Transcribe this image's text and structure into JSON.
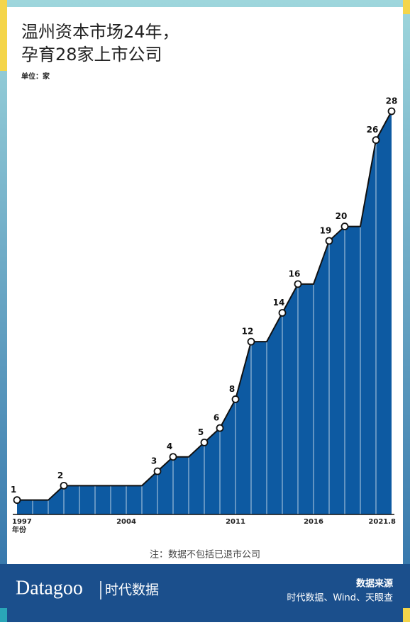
{
  "chart_data": {
    "type": "area",
    "title_lines": [
      "温州资本市场24年，",
      "孕育28家上市公司"
    ],
    "unit": "单位：家",
    "xlabel": "年份",
    "categories": [
      "1997",
      null,
      null,
      null,
      null,
      null,
      null,
      "2004",
      null,
      null,
      null,
      null,
      null,
      null,
      "2011",
      null,
      null,
      null,
      null,
      "2016",
      null,
      null,
      null,
      null,
      "2021.8"
    ],
    "values": [
      1,
      1,
      1,
      2,
      2,
      2,
      2,
      2,
      2,
      3,
      4,
      4,
      5,
      6,
      8,
      12,
      12,
      14,
      16,
      16,
      19,
      20,
      20,
      26,
      28
    ],
    "ylim": [
      0,
      28
    ],
    "color": "#0d5aa2",
    "note": "注：数据不包括已退市公司"
  },
  "footer": {
    "brand": "Datagoo",
    "brand_cn": "时代数据",
    "source_title": "数据来源",
    "source": "时代数据、Wind、天眼查"
  }
}
